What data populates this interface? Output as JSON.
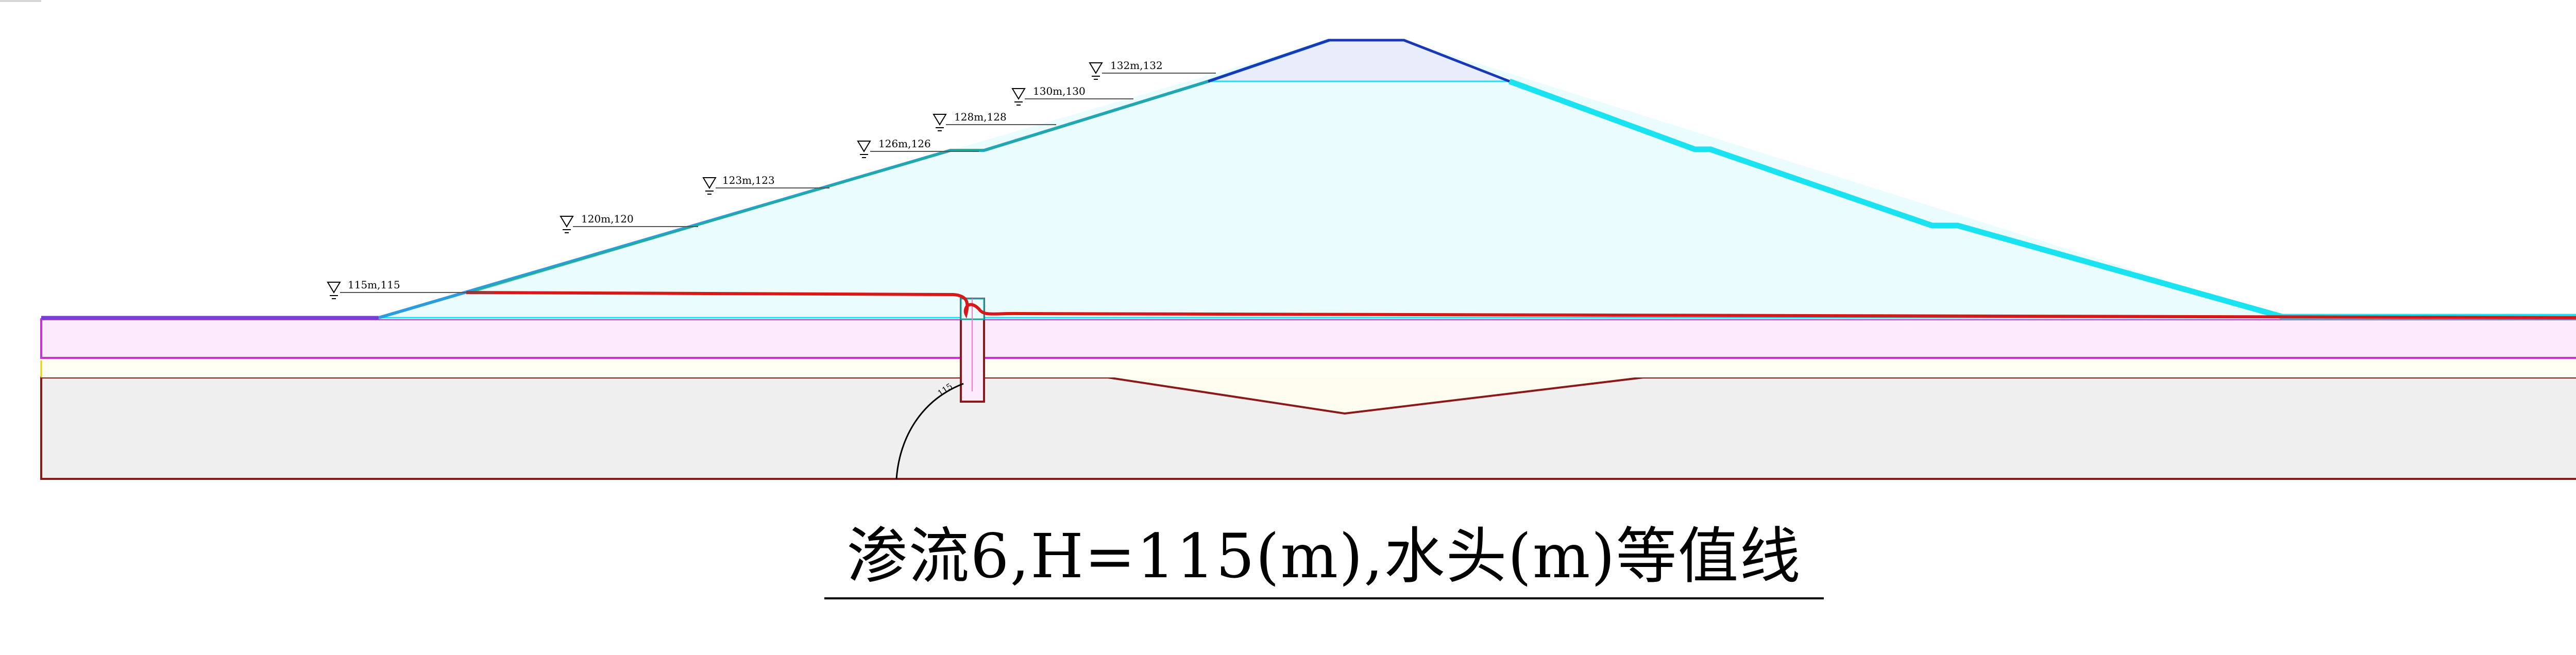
{
  "title": "渗流6,H=115(m),水头(m)等值线",
  "water_levels": [
    {
      "label": "115m,115"
    },
    {
      "label": "120m,120"
    },
    {
      "label": "123m,123"
    },
    {
      "label": "126m,126"
    },
    {
      "label": "128m,128"
    },
    {
      "label": "130m,130"
    },
    {
      "label": "132m,132"
    }
  ],
  "colors": {
    "dam_fill": "#eafcfe",
    "crest_fill": "#e8ecfb",
    "upstream_face": "#2d9be0",
    "downstream_face": "#19e3f0",
    "phreatic_line": "#d81818",
    "foundation_outline": "#8a1a1a",
    "foundation_fill": "#efefef",
    "layer_fill": "#fcebfc",
    "layer_outline": "#cc33cc",
    "upstream_ground": "#7a3cd8",
    "wall_outline": "#8a1a1a"
  }
}
